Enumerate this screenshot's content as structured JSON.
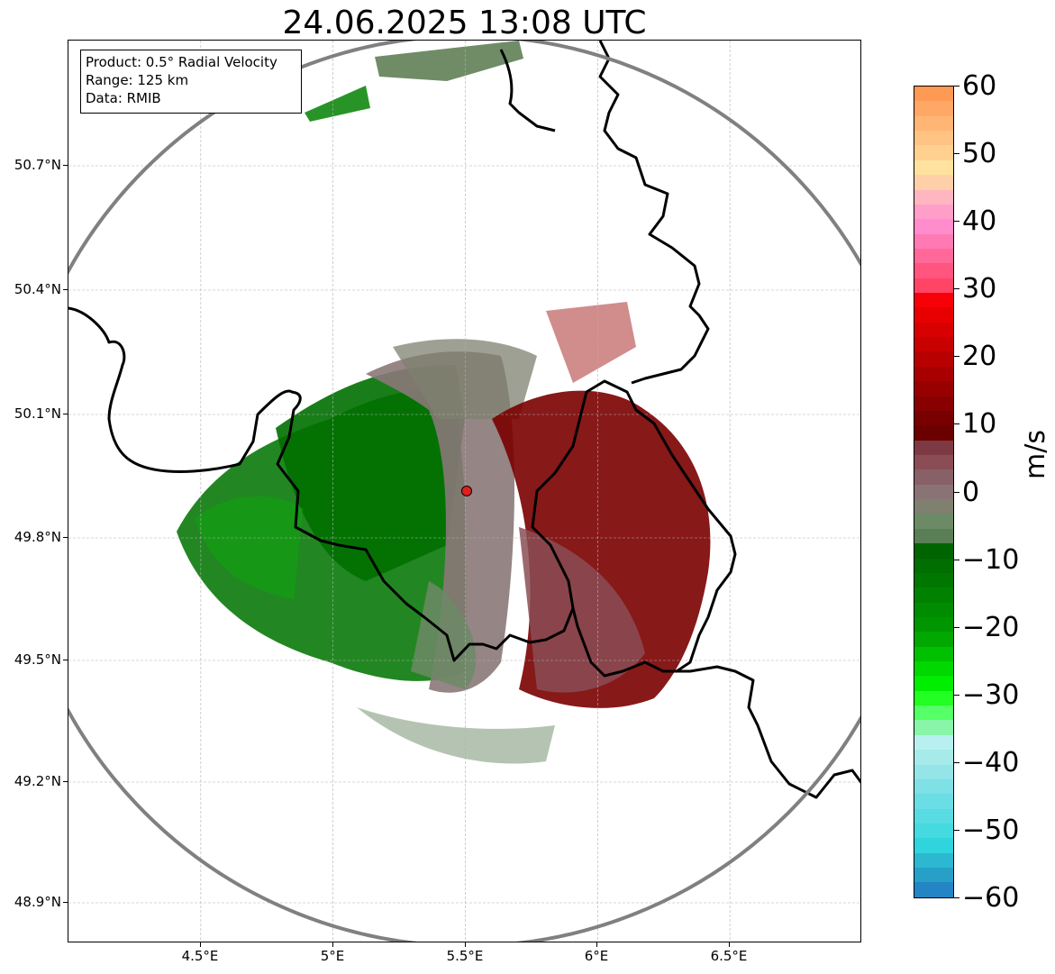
{
  "title": "24.06.2025 13:08 UTC",
  "info_box": {
    "product": "Product: 0.5° Radial Velocity",
    "range": "Range: 125 km",
    "data": "Data: RMIB"
  },
  "axes": {
    "lat_ticks": [
      "50.7°N",
      "50.4°N",
      "50.1°N",
      "49.8°N",
      "49.5°N",
      "49.2°N",
      "48.9°N"
    ],
    "lon_ticks": [
      "4.5°E",
      "5°E",
      "5.5°E",
      "6°E",
      "6.5°E"
    ],
    "lon_range": [
      4.0,
      7.0
    ],
    "lat_range": [
      48.8,
      51.0
    ],
    "grid": true
  },
  "radar": {
    "site_lon": 5.505,
    "site_lat": 49.914,
    "range_km": 125,
    "site_marker_color": "#e02020",
    "range_ring_color": "#808080"
  },
  "colorbar": {
    "unit": "m/s",
    "min": -60,
    "max": 60,
    "tick_labels": [
      "60",
      "50",
      "40",
      "30",
      "20",
      "10",
      "0",
      "−10",
      "−20",
      "−30",
      "−40",
      "−50",
      "−60"
    ],
    "colors_top_to_bottom": [
      "#ff9a55",
      "#ffa866",
      "#ffb675",
      "#ffc383",
      "#ffd090",
      "#ffe29e",
      "#ffd0a8",
      "#ffb6c0",
      "#ff9ec8",
      "#ff8ccc",
      "#ff7ab4",
      "#ff6899",
      "#ff557f",
      "#ff4466",
      "#f80008",
      "#e80000",
      "#d80000",
      "#c80000",
      "#b80000",
      "#a80000",
      "#980000",
      "#880000",
      "#780000",
      "#6a0000",
      "#7e3a42",
      "#8a4d55",
      "#876068",
      "#8a7375",
      "#7f8070",
      "#6c8a66",
      "#5a7e55",
      "#006400",
      "#006e00",
      "#007800",
      "#008200",
      "#008c00",
      "#009600",
      "#00a800",
      "#00c000",
      "#00d800",
      "#00ee00",
      "#22ff22",
      "#55ff66",
      "#88f5a8",
      "#b8f0f0",
      "#a6eaea",
      "#93e5e8",
      "#7fe0e6",
      "#6bdde4",
      "#58dbe2",
      "#45d9e0",
      "#2fd4dc",
      "#2bb8d0",
      "#27a0c8",
      "#2385c4"
    ]
  },
  "colors": {
    "border": "#000000",
    "gridline": "#b0b0b0",
    "approaching": "#008000",
    "receding": "#8b0000",
    "near_zero": "#8a7070"
  }
}
